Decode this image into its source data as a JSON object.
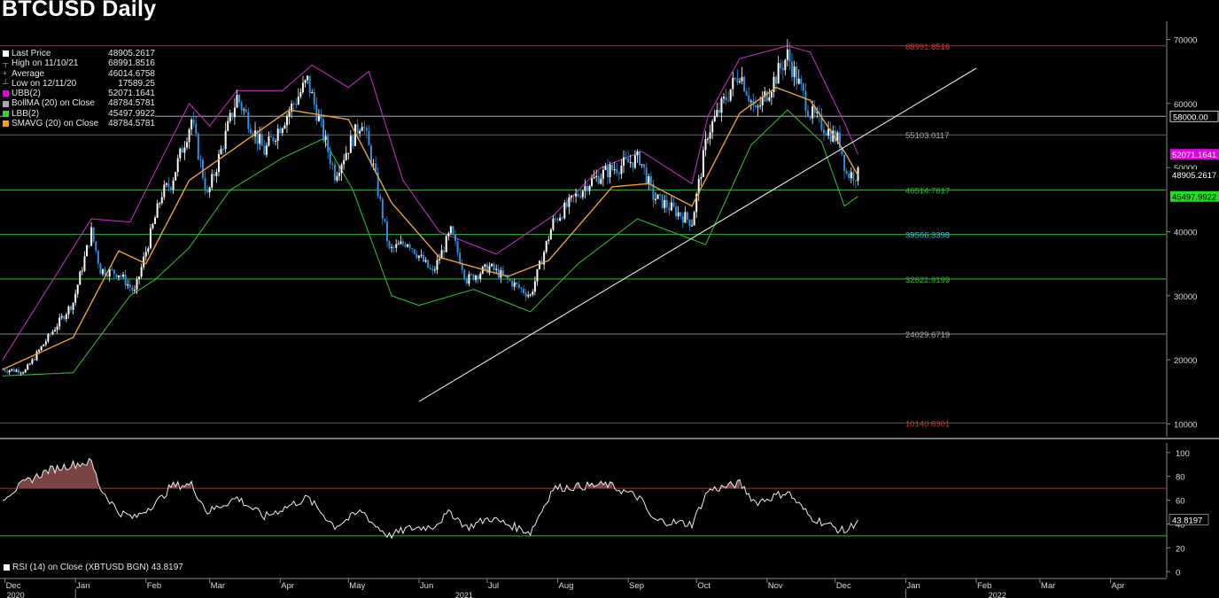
{
  "title": "BTCUSD Daily",
  "legend": [
    {
      "label": "Last Price",
      "value": "48905.2617",
      "color": "#ffffff",
      "marker": "box"
    },
    {
      "label": "High on 11/10/21",
      "value": "68991.8516",
      "color": "#aaaaaa",
      "marker": "T"
    },
    {
      "label": "Average",
      "value": "46014.6758",
      "color": "#aaaaaa",
      "marker": "+"
    },
    {
      "label": "Low on 12/11/20",
      "value": "17589.25",
      "color": "#aaaaaa",
      "marker": "L"
    },
    {
      "label": "UBB(2)",
      "value": "52071.1641",
      "color": "#e100e1",
      "marker": "box"
    },
    {
      "label": "BollMA (20)  on Close",
      "value": "48784.5781",
      "color": "#aaaaaa",
      "marker": "box"
    },
    {
      "label": "LBB(2)",
      "value": "45497.9922",
      "color": "#22dd22",
      "marker": "box"
    },
    {
      "label": "SMAVG (20)  on Close",
      "value": "48784.5781",
      "color": "#ff9a1f",
      "marker": "box"
    }
  ],
  "rsi_legend": "RSI (14)  on Close (XBTUSD BGN) 43.8197",
  "colors": {
    "up": "#ffffff",
    "down": "#2f8fe0",
    "ubb": "#c02bc0",
    "lbb": "#2eb82e",
    "sma": "#f0a030",
    "resistance": "#cc2222",
    "support": "#35b535",
    "grey": "#888888"
  },
  "chart_data": [
    {
      "type": "candlestick",
      "title": "BTCUSD Daily",
      "ylim": [
        8000,
        72000
      ],
      "y_ticks": [
        10000,
        20000,
        30000,
        40000,
        50000,
        60000,
        70000
      ],
      "x_tick_labels": [
        "Dec",
        "Jan",
        "Feb",
        "Mar",
        "Apr",
        "May",
        "Jun",
        "Jul",
        "Aug",
        "Sep",
        "Oct",
        "Nov",
        "Dec",
        "Jan",
        "Feb",
        "Mar",
        "Apr"
      ],
      "year_labels": [
        "2020",
        "2021",
        "2022"
      ],
      "series_close": {
        "start": "2020-11-30",
        "points": [
          [
            "2020-11-30",
            18500
          ],
          [
            "2020-12-10",
            18300
          ],
          [
            "2020-12-20",
            23500
          ],
          [
            "2020-12-31",
            29000
          ],
          [
            "2021-01-08",
            40000
          ],
          [
            "2021-01-12",
            34000
          ],
          [
            "2021-01-20",
            33500
          ],
          [
            "2021-01-27",
            30500
          ],
          [
            "2021-02-08",
            46000
          ],
          [
            "2021-02-12",
            47500
          ],
          [
            "2021-02-21",
            57500
          ],
          [
            "2021-02-28",
            45500
          ],
          [
            "2021-03-13",
            61000
          ],
          [
            "2021-03-25",
            52500
          ],
          [
            "2021-04-13",
            63500
          ],
          [
            "2021-04-25",
            49000
          ],
          [
            "2021-05-07",
            57500
          ],
          [
            "2021-05-12",
            50000
          ],
          [
            "2021-05-19",
            37000
          ],
          [
            "2021-05-27",
            38500
          ],
          [
            "2021-06-07",
            33500
          ],
          [
            "2021-06-15",
            40000
          ],
          [
            "2021-06-22",
            32500
          ],
          [
            "2021-07-02",
            34500
          ],
          [
            "2021-07-20",
            30000
          ],
          [
            "2021-07-30",
            41500
          ],
          [
            "2021-08-14",
            47500
          ],
          [
            "2021-08-23",
            49500
          ],
          [
            "2021-09-06",
            51500
          ],
          [
            "2021-09-12",
            45500
          ],
          [
            "2021-09-29",
            41500
          ],
          [
            "2021-10-06",
            55500
          ],
          [
            "2021-10-20",
            65000
          ],
          [
            "2021-10-27",
            58500
          ],
          [
            "2021-11-10",
            67500
          ],
          [
            "2021-11-20",
            58500
          ],
          [
            "2021-12-03",
            54000
          ],
          [
            "2021-12-06",
            49000
          ],
          [
            "2021-12-11",
            48905
          ]
        ]
      },
      "ubb": [
        [
          "2020-11-30",
          20000
        ],
        [
          "2021-01-08",
          42000
        ],
        [
          "2021-01-25",
          41500
        ],
        [
          "2021-02-20",
          60000
        ],
        [
          "2021-03-01",
          56500
        ],
        [
          "2021-03-13",
          62000
        ],
        [
          "2021-04-02",
          62000
        ],
        [
          "2021-04-15",
          66000
        ],
        [
          "2021-05-01",
          62500
        ],
        [
          "2021-05-10",
          65000
        ],
        [
          "2021-05-25",
          48000
        ],
        [
          "2021-06-10",
          40000
        ],
        [
          "2021-07-05",
          36500
        ],
        [
          "2021-07-30",
          42500
        ],
        [
          "2021-08-20",
          50000
        ],
        [
          "2021-09-07",
          52500
        ],
        [
          "2021-09-29",
          47500
        ],
        [
          "2021-10-06",
          58000
        ],
        [
          "2021-10-20",
          67000
        ],
        [
          "2021-11-10",
          69000
        ],
        [
          "2021-11-20",
          68000
        ],
        [
          "2021-12-05",
          57000
        ],
        [
          "2021-12-11",
          52071
        ]
      ],
      "lbb": [
        [
          "2020-11-30",
          17500
        ],
        [
          "2020-12-31",
          18000
        ],
        [
          "2021-01-25",
          30000
        ],
        [
          "2021-02-05",
          32500
        ],
        [
          "2021-02-20",
          37500
        ],
        [
          "2021-03-10",
          46500
        ],
        [
          "2021-04-02",
          51500
        ],
        [
          "2021-04-20",
          54500
        ],
        [
          "2021-05-03",
          46500
        ],
        [
          "2021-05-20",
          30000
        ],
        [
          "2021-06-01",
          28500
        ],
        [
          "2021-06-25",
          31000
        ],
        [
          "2021-07-20",
          27500
        ],
        [
          "2021-08-10",
          35000
        ],
        [
          "2021-09-05",
          42000
        ],
        [
          "2021-09-20",
          40000
        ],
        [
          "2021-10-05",
          38000
        ],
        [
          "2021-10-25",
          53500
        ],
        [
          "2021-11-10",
          59000
        ],
        [
          "2021-11-25",
          54000
        ],
        [
          "2021-12-05",
          44000
        ],
        [
          "2021-12-11",
          45498
        ]
      ],
      "sma": [
        [
          "2020-11-30",
          18500
        ],
        [
          "2020-12-31",
          23500
        ],
        [
          "2021-01-20",
          37000
        ],
        [
          "2021-02-01",
          35000
        ],
        [
          "2021-02-20",
          48000
        ],
        [
          "2021-03-10",
          52500
        ],
        [
          "2021-04-05",
          59000
        ],
        [
          "2021-05-01",
          57500
        ],
        [
          "2021-05-20",
          44500
        ],
        [
          "2021-06-10",
          36000
        ],
        [
          "2021-07-10",
          33000
        ],
        [
          "2021-07-28",
          35500
        ],
        [
          "2021-08-25",
          47000
        ],
        [
          "2021-09-10",
          47500
        ],
        [
          "2021-09-29",
          44000
        ],
        [
          "2021-10-20",
          58500
        ],
        [
          "2021-11-05",
          62500
        ],
        [
          "2021-11-20",
          60500
        ],
        [
          "2021-12-05",
          52500
        ],
        [
          "2021-12-11",
          48785
        ]
      ],
      "trendline": {
        "from": [
          "2021-06-01",
          13500
        ],
        "to": [
          "2022-02-01",
          65500
        ]
      },
      "horizontal_levels": [
        {
          "value": 68991.8516,
          "label": "68991.8516",
          "color": "#dd3333",
          "line": "#cc2222"
        },
        {
          "value": 58000,
          "label": "58000.00",
          "color": "#ffffff",
          "line": "#aaaaaa",
          "boxed": true
        },
        {
          "value": 55103.0117,
          "label": "55103.0117",
          "color": "#aaaaaa",
          "line": "#666666"
        },
        {
          "value": 46514.7617,
          "label": "46514.7617",
          "color": "#35b535",
          "line": "#35b535"
        },
        {
          "value": 39566.3398,
          "label": "39566.3398",
          "color": "#39b6ee",
          "line": "#35b535"
        },
        {
          "value": 32621.9199,
          "label": "32621.9199",
          "color": "#35b535",
          "line": "#35b535"
        },
        {
          "value": 24029.6719,
          "label": "24029.6719",
          "color": "#aaaaaa",
          "line": "#888888"
        },
        {
          "value": 10140.8301,
          "label": "10140.8301",
          "color": "#dd3333",
          "line": "#cc2222"
        }
      ],
      "axis_value_boxes": [
        {
          "value": 52071.1641,
          "label": "52071.1641",
          "bg": "#e100e1",
          "fg": "#ffffff"
        },
        {
          "value": 48905.2617,
          "label": "48905.2617",
          "bg": "#000000",
          "fg": "#ffffff"
        },
        {
          "value": 45497.9922,
          "label": "45497.9922",
          "bg": "#22dd22",
          "fg": "#000000"
        }
      ]
    },
    {
      "type": "line",
      "title": "RSI (14)",
      "ylim": [
        -5,
        108
      ],
      "y_ticks": [
        0,
        20,
        40,
        60,
        80,
        100
      ],
      "overbought": 70,
      "oversold": 30,
      "last": {
        "value": 43.8197,
        "label": "43.8197"
      },
      "points": [
        [
          "2020-11-30",
          62
        ],
        [
          "2020-12-10",
          75
        ],
        [
          "2020-12-20",
          85
        ],
        [
          "2020-12-31",
          90
        ],
        [
          "2021-01-08",
          92
        ],
        [
          "2021-01-12",
          70
        ],
        [
          "2021-01-20",
          50
        ],
        [
          "2021-01-27",
          45
        ],
        [
          "2021-02-08",
          62
        ],
        [
          "2021-02-12",
          72
        ],
        [
          "2021-02-21",
          73
        ],
        [
          "2021-02-28",
          50
        ],
        [
          "2021-03-13",
          62
        ],
        [
          "2021-03-25",
          46
        ],
        [
          "2021-04-13",
          62
        ],
        [
          "2021-04-25",
          38
        ],
        [
          "2021-05-07",
          51
        ],
        [
          "2021-05-12",
          40
        ],
        [
          "2021-05-19",
          30
        ],
        [
          "2021-05-27",
          36
        ],
        [
          "2021-06-07",
          38
        ],
        [
          "2021-06-15",
          50
        ],
        [
          "2021-06-22",
          37
        ],
        [
          "2021-07-02",
          45
        ],
        [
          "2021-07-20",
          33
        ],
        [
          "2021-07-30",
          70
        ],
        [
          "2021-08-14",
          72
        ],
        [
          "2021-08-23",
          73
        ],
        [
          "2021-09-06",
          62
        ],
        [
          "2021-09-12",
          43
        ],
        [
          "2021-09-29",
          40
        ],
        [
          "2021-10-06",
          68
        ],
        [
          "2021-10-20",
          74
        ],
        [
          "2021-10-27",
          58
        ],
        [
          "2021-11-10",
          67
        ],
        [
          "2021-11-20",
          46
        ],
        [
          "2021-12-03",
          35
        ],
        [
          "2021-12-06",
          34
        ],
        [
          "2021-12-11",
          43.8
        ]
      ]
    }
  ]
}
